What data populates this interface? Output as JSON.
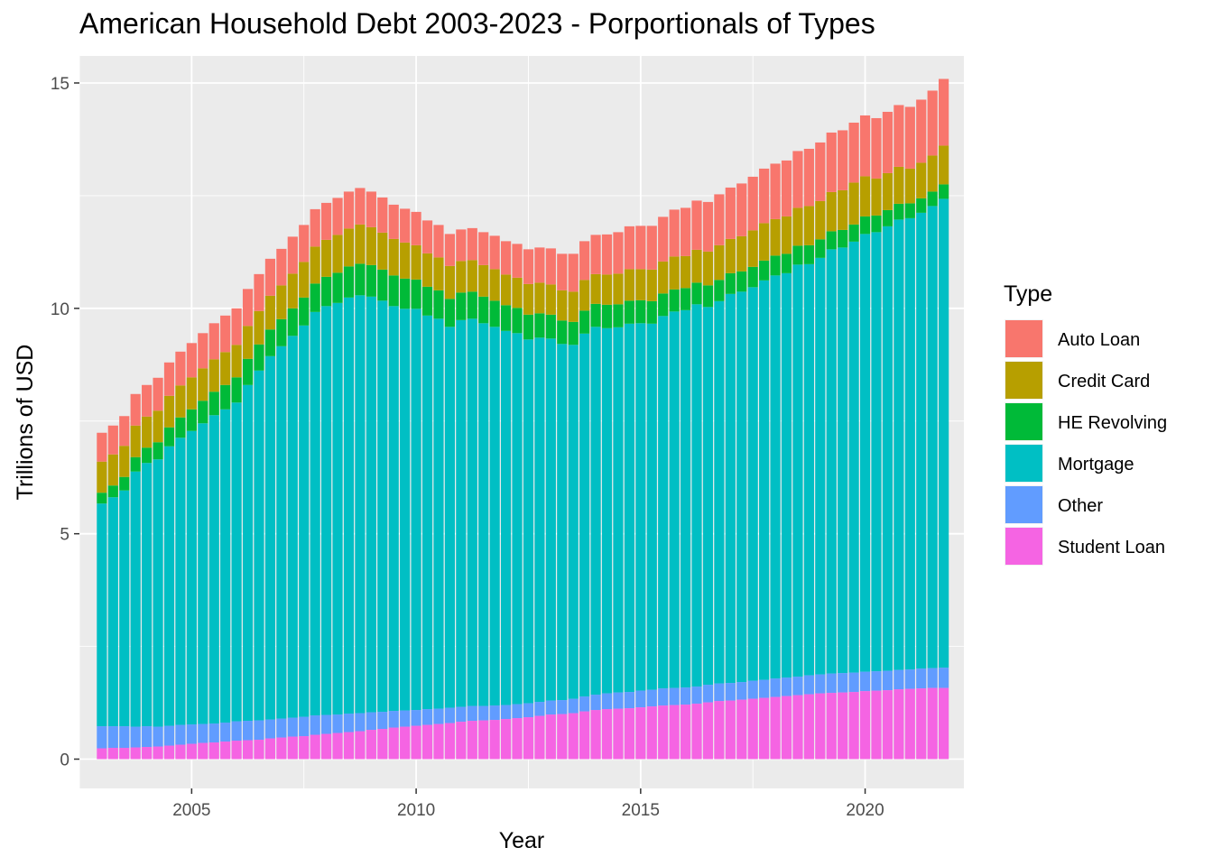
{
  "chart_data": {
    "type": "bar",
    "stacked": true,
    "title": "American Household Debt 2003-2023 - Porportionals of Types",
    "xlabel": "Year",
    "ylabel": "Trillions of USD",
    "xlim": [
      2002.5,
      2022.2
    ],
    "ylim": [
      -0.65,
      15.6
    ],
    "x_ticks": [
      2005,
      2010,
      2015,
      2020
    ],
    "y_ticks": [
      0,
      5,
      10,
      15
    ],
    "grid": true,
    "legend": {
      "title": "Type",
      "position": "right"
    },
    "start_year": 2003,
    "periods_per_year": 4,
    "series_order_bottom_to_top": [
      "Student Loan",
      "Other",
      "Mortgage",
      "HE Revolving",
      "Credit Card",
      "Auto Loan"
    ],
    "colors": {
      "Auto Loan": "#F8766D",
      "Credit Card": "#B79F00",
      "HE Revolving": "#00BA38",
      "Mortgage": "#00BFC4",
      "Other": "#619CFF",
      "Student Loan": "#F564E3"
    },
    "quarters": [
      "2003 Q1",
      "2003 Q2",
      "2003 Q3",
      "2003 Q4",
      "2004 Q1",
      "2004 Q2",
      "2004 Q3",
      "2004 Q4",
      "2005 Q1",
      "2005 Q2",
      "2005 Q3",
      "2005 Q4",
      "2006 Q1",
      "2006 Q2",
      "2006 Q3",
      "2006 Q4",
      "2007 Q1",
      "2007 Q2",
      "2007 Q3",
      "2007 Q4",
      "2008 Q1",
      "2008 Q2",
      "2008 Q3",
      "2008 Q4",
      "2009 Q1",
      "2009 Q2",
      "2009 Q3",
      "2009 Q4",
      "2010 Q1",
      "2010 Q2",
      "2010 Q3",
      "2010 Q4",
      "2011 Q1",
      "2011 Q2",
      "2011 Q3",
      "2011 Q4",
      "2012 Q1",
      "2012 Q2",
      "2012 Q3",
      "2012 Q4",
      "2013 Q1",
      "2013 Q2",
      "2013 Q3",
      "2013 Q4",
      "2014 Q1",
      "2014 Q2",
      "2014 Q3",
      "2014 Q4",
      "2015 Q1",
      "2015 Q2",
      "2015 Q3",
      "2015 Q4",
      "2016 Q1",
      "2016 Q2",
      "2016 Q3",
      "2016 Q4",
      "2017 Q1",
      "2017 Q2",
      "2017 Q3",
      "2017 Q4",
      "2018 Q1",
      "2018 Q2",
      "2018 Q3",
      "2018 Q4",
      "2019 Q1",
      "2019 Q2",
      "2019 Q3",
      "2019 Q4",
      "2020 Q1",
      "2020 Q2",
      "2020 Q3",
      "2020 Q4",
      "2021 Q1",
      "2021 Q2",
      "2021 Q3",
      "2021 Q4"
    ],
    "series": [
      {
        "name": "Student Loan",
        "values": [
          0.24,
          0.25,
          0.25,
          0.26,
          0.27,
          0.28,
          0.3,
          0.32,
          0.34,
          0.36,
          0.37,
          0.39,
          0.41,
          0.42,
          0.43,
          0.46,
          0.48,
          0.5,
          0.51,
          0.54,
          0.56,
          0.58,
          0.6,
          0.62,
          0.65,
          0.67,
          0.7,
          0.72,
          0.74,
          0.76,
          0.78,
          0.8,
          0.83,
          0.85,
          0.86,
          0.87,
          0.89,
          0.91,
          0.93,
          0.96,
          0.99,
          1.0,
          1.02,
          1.06,
          1.09,
          1.11,
          1.12,
          1.13,
          1.15,
          1.17,
          1.19,
          1.2,
          1.21,
          1.23,
          1.26,
          1.29,
          1.3,
          1.32,
          1.34,
          1.36,
          1.38,
          1.4,
          1.42,
          1.44,
          1.46,
          1.47,
          1.48,
          1.49,
          1.51,
          1.52,
          1.53,
          1.55,
          1.56,
          1.57,
          1.58,
          1.58
        ]
      },
      {
        "name": "Other",
        "values": [
          0.49,
          0.48,
          0.48,
          0.46,
          0.46,
          0.44,
          0.44,
          0.44,
          0.43,
          0.42,
          0.42,
          0.42,
          0.43,
          0.43,
          0.43,
          0.42,
          0.42,
          0.42,
          0.43,
          0.43,
          0.42,
          0.41,
          0.41,
          0.4,
          0.39,
          0.38,
          0.37,
          0.36,
          0.35,
          0.35,
          0.34,
          0.34,
          0.33,
          0.33,
          0.32,
          0.32,
          0.31,
          0.31,
          0.31,
          0.31,
          0.31,
          0.31,
          0.32,
          0.33,
          0.34,
          0.35,
          0.36,
          0.36,
          0.37,
          0.37,
          0.38,
          0.38,
          0.38,
          0.38,
          0.39,
          0.39,
          0.39,
          0.39,
          0.4,
          0.4,
          0.41,
          0.41,
          0.41,
          0.42,
          0.42,
          0.43,
          0.43,
          0.43,
          0.43,
          0.43,
          0.43,
          0.43,
          0.43,
          0.44,
          0.44,
          0.45
        ]
      },
      {
        "name": "Mortgage",
        "values": [
          4.94,
          5.08,
          5.23,
          5.66,
          5.84,
          5.93,
          6.2,
          6.37,
          6.51,
          6.67,
          6.84,
          6.95,
          7.07,
          7.45,
          7.76,
          8.06,
          8.26,
          8.47,
          8.68,
          8.95,
          9.07,
          9.13,
          9.23,
          9.27,
          9.22,
          9.12,
          8.98,
          8.91,
          8.9,
          8.73,
          8.65,
          8.45,
          8.58,
          8.59,
          8.49,
          8.4,
          8.3,
          8.23,
          8.07,
          8.08,
          8.03,
          7.9,
          7.85,
          8.05,
          8.16,
          8.1,
          8.1,
          8.17,
          8.15,
          8.12,
          8.26,
          8.35,
          8.37,
          8.48,
          8.38,
          8.48,
          8.63,
          8.66,
          8.73,
          8.86,
          8.94,
          8.97,
          9.14,
          9.12,
          9.24,
          9.41,
          9.44,
          9.56,
          9.71,
          9.74,
          9.86,
          9.99,
          10.01,
          10.11,
          10.25,
          10.4
        ]
      },
      {
        "name": "HE Revolving",
        "values": [
          0.24,
          0.26,
          0.3,
          0.32,
          0.34,
          0.38,
          0.42,
          0.45,
          0.48,
          0.5,
          0.52,
          0.54,
          0.56,
          0.58,
          0.58,
          0.59,
          0.6,
          0.61,
          0.62,
          0.63,
          0.65,
          0.67,
          0.69,
          0.7,
          0.7,
          0.69,
          0.68,
          0.67,
          0.65,
          0.64,
          0.63,
          0.62,
          0.61,
          0.6,
          0.59,
          0.58,
          0.57,
          0.56,
          0.55,
          0.54,
          0.53,
          0.52,
          0.51,
          0.51,
          0.51,
          0.52,
          0.51,
          0.51,
          0.51,
          0.5,
          0.5,
          0.49,
          0.49,
          0.48,
          0.48,
          0.47,
          0.46,
          0.45,
          0.45,
          0.44,
          0.44,
          0.43,
          0.42,
          0.42,
          0.41,
          0.4,
          0.39,
          0.38,
          0.39,
          0.37,
          0.36,
          0.35,
          0.33,
          0.32,
          0.32,
          0.32
        ]
      },
      {
        "name": "Credit Card",
        "values": [
          0.69,
          0.69,
          0.69,
          0.7,
          0.69,
          0.7,
          0.7,
          0.71,
          0.71,
          0.72,
          0.72,
          0.73,
          0.72,
          0.73,
          0.74,
          0.75,
          0.75,
          0.77,
          0.79,
          0.82,
          0.82,
          0.84,
          0.84,
          0.87,
          0.84,
          0.82,
          0.81,
          0.8,
          0.76,
          0.74,
          0.73,
          0.73,
          0.7,
          0.7,
          0.7,
          0.7,
          0.68,
          0.67,
          0.68,
          0.68,
          0.67,
          0.67,
          0.67,
          0.68,
          0.66,
          0.67,
          0.68,
          0.7,
          0.69,
          0.7,
          0.71,
          0.73,
          0.71,
          0.73,
          0.75,
          0.77,
          0.76,
          0.78,
          0.81,
          0.83,
          0.81,
          0.83,
          0.84,
          0.87,
          0.85,
          0.87,
          0.88,
          0.93,
          0.89,
          0.82,
          0.82,
          0.82,
          0.77,
          0.79,
          0.8,
          0.86
        ]
      },
      {
        "name": "Auto Loan",
        "values": [
          0.64,
          0.64,
          0.66,
          0.7,
          0.7,
          0.73,
          0.74,
          0.75,
          0.76,
          0.78,
          0.8,
          0.81,
          0.81,
          0.82,
          0.82,
          0.82,
          0.81,
          0.82,
          0.82,
          0.83,
          0.82,
          0.82,
          0.82,
          0.81,
          0.79,
          0.78,
          0.76,
          0.75,
          0.74,
          0.73,
          0.72,
          0.71,
          0.7,
          0.71,
          0.73,
          0.74,
          0.74,
          0.75,
          0.77,
          0.78,
          0.8,
          0.81,
          0.84,
          0.86,
          0.87,
          0.89,
          0.92,
          0.95,
          0.96,
          0.97,
          0.99,
          1.04,
          1.07,
          1.09,
          1.1,
          1.13,
          1.14,
          1.17,
          1.19,
          1.21,
          1.23,
          1.24,
          1.26,
          1.27,
          1.3,
          1.32,
          1.33,
          1.33,
          1.35,
          1.34,
          1.36,
          1.37,
          1.37,
          1.4,
          1.44,
          1.48
        ]
      }
    ]
  }
}
